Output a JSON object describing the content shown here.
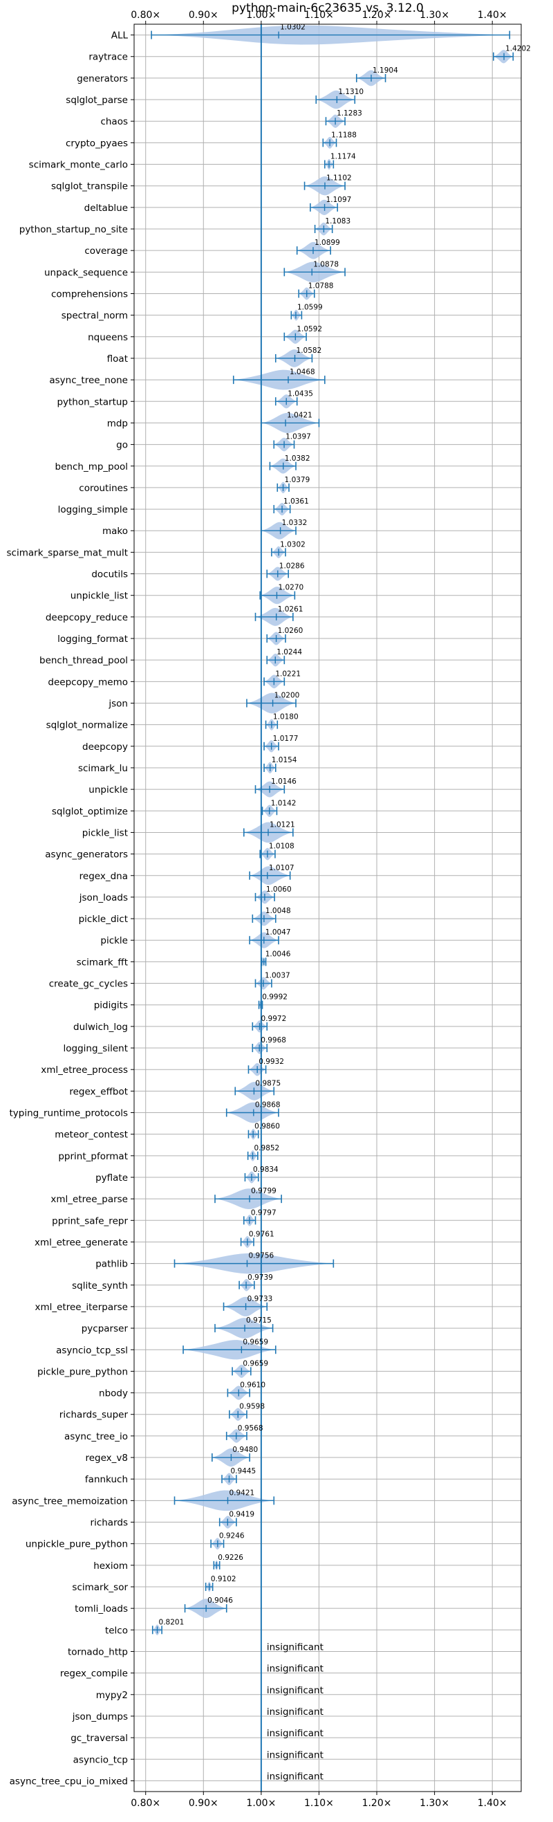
{
  "chart_data": {
    "type": "violin",
    "title": "python-main-6c23635 vs. 3.12.0",
    "xlim": [
      0.78,
      1.45
    ],
    "x_ticks": [
      0.8,
      0.9,
      1.0,
      1.1,
      1.2,
      1.3,
      1.4
    ],
    "x_tick_labels": [
      "0.80×",
      "0.90×",
      "1.00×",
      "1.10×",
      "1.20×",
      "1.30×",
      "1.40×"
    ],
    "reference_line": 1.0,
    "grid": true,
    "colors": {
      "violin": "#aec7e8",
      "line": "#1f77b4"
    },
    "benchmarks": [
      {
        "name": "ALL",
        "label": "1.0302",
        "value": 1.0302,
        "min": 0.81,
        "max": 1.43
      },
      {
        "name": "raytrace",
        "label": "1.4202",
        "value": 1.4202,
        "min": 1.402,
        "max": 1.436
      },
      {
        "name": "generators",
        "label": "1.1904",
        "value": 1.1904,
        "min": 1.165,
        "max": 1.215
      },
      {
        "name": "sqlglot_parse",
        "label": "1.1310",
        "value": 1.131,
        "min": 1.095,
        "max": 1.162
      },
      {
        "name": "chaos",
        "label": "1.1283",
        "value": 1.1283,
        "min": 1.112,
        "max": 1.145
      },
      {
        "name": "crypto_pyaes",
        "label": "1.1188",
        "value": 1.1188,
        "min": 1.107,
        "max": 1.13
      },
      {
        "name": "scimark_monte_carlo",
        "label": "1.1174",
        "value": 1.1174,
        "min": 1.11,
        "max": 1.125
      },
      {
        "name": "sqlglot_transpile",
        "label": "1.1102",
        "value": 1.1102,
        "min": 1.075,
        "max": 1.145
      },
      {
        "name": "deltablue",
        "label": "1.1097",
        "value": 1.1097,
        "min": 1.085,
        "max": 1.132
      },
      {
        "name": "python_startup_no_site",
        "label": "1.1083",
        "value": 1.1083,
        "min": 1.093,
        "max": 1.123
      },
      {
        "name": "coverage",
        "label": "1.0899",
        "value": 1.0899,
        "min": 1.062,
        "max": 1.12
      },
      {
        "name": "unpack_sequence",
        "label": "1.0878",
        "value": 1.0878,
        "min": 1.04,
        "max": 1.145
      },
      {
        "name": "comprehensions",
        "label": "1.0788",
        "value": 1.0788,
        "min": 1.065,
        "max": 1.092
      },
      {
        "name": "spectral_norm",
        "label": "1.0599",
        "value": 1.0599,
        "min": 1.052,
        "max": 1.07
      },
      {
        "name": "nqueens",
        "label": "1.0592",
        "value": 1.0592,
        "min": 1.04,
        "max": 1.078
      },
      {
        "name": "float",
        "label": "1.0582",
        "value": 1.0582,
        "min": 1.025,
        "max": 1.088
      },
      {
        "name": "async_tree_none",
        "label": "1.0468",
        "value": 1.0468,
        "min": 0.952,
        "max": 1.11
      },
      {
        "name": "python_startup",
        "label": "1.0435",
        "value": 1.0435,
        "min": 1.025,
        "max": 1.062
      },
      {
        "name": "mdp",
        "label": "1.0421",
        "value": 1.0421,
        "min": 1.0,
        "max": 1.1
      },
      {
        "name": "go",
        "label": "1.0397",
        "value": 1.0397,
        "min": 1.022,
        "max": 1.057
      },
      {
        "name": "bench_mp_pool",
        "label": "1.0382",
        "value": 1.0382,
        "min": 1.015,
        "max": 1.06
      },
      {
        "name": "coroutines",
        "label": "1.0379",
        "value": 1.0379,
        "min": 1.028,
        "max": 1.048
      },
      {
        "name": "logging_simple",
        "label": "1.0361",
        "value": 1.0361,
        "min": 1.022,
        "max": 1.05
      },
      {
        "name": "mako",
        "label": "1.0332",
        "value": 1.0332,
        "min": 1.0,
        "max": 1.06
      },
      {
        "name": "scimark_sparse_mat_mult",
        "label": "1.0302",
        "value": 1.0302,
        "min": 1.018,
        "max": 1.042
      },
      {
        "name": "docutils",
        "label": "1.0286",
        "value": 1.0286,
        "min": 1.01,
        "max": 1.047
      },
      {
        "name": "unpickle_list",
        "label": "1.0270",
        "value": 1.027,
        "min": 0.998,
        "max": 1.058
      },
      {
        "name": "deepcopy_reduce",
        "label": "1.0261",
        "value": 1.0261,
        "min": 0.99,
        "max": 1.055
      },
      {
        "name": "logging_format",
        "label": "1.0260",
        "value": 1.026,
        "min": 1.01,
        "max": 1.042
      },
      {
        "name": "bench_thread_pool",
        "label": "1.0244",
        "value": 1.0244,
        "min": 1.01,
        "max": 1.04
      },
      {
        "name": "deepcopy_memo",
        "label": "1.0221",
        "value": 1.0221,
        "min": 1.005,
        "max": 1.04
      },
      {
        "name": "json",
        "label": "1.0200",
        "value": 1.02,
        "min": 0.975,
        "max": 1.06
      },
      {
        "name": "sqlglot_normalize",
        "label": "1.0180",
        "value": 1.018,
        "min": 1.008,
        "max": 1.028
      },
      {
        "name": "deepcopy",
        "label": "1.0177",
        "value": 1.0177,
        "min": 1.005,
        "max": 1.03
      },
      {
        "name": "scimark_lu",
        "label": "1.0154",
        "value": 1.0154,
        "min": 1.005,
        "max": 1.025
      },
      {
        "name": "unpickle",
        "label": "1.0146",
        "value": 1.0146,
        "min": 0.99,
        "max": 1.04
      },
      {
        "name": "sqlglot_optimize",
        "label": "1.0142",
        "value": 1.0142,
        "min": 1.002,
        "max": 1.027
      },
      {
        "name": "pickle_list",
        "label": "1.0121",
        "value": 1.0121,
        "min": 0.97,
        "max": 1.055
      },
      {
        "name": "async_generators",
        "label": "1.0108",
        "value": 1.0108,
        "min": 0.998,
        "max": 1.024
      },
      {
        "name": "regex_dna",
        "label": "1.0107",
        "value": 1.0107,
        "min": 0.98,
        "max": 1.05
      },
      {
        "name": "json_loads",
        "label": "1.0060",
        "value": 1.006,
        "min": 0.99,
        "max": 1.023
      },
      {
        "name": "pickle_dict",
        "label": "1.0048",
        "value": 1.0048,
        "min": 0.985,
        "max": 1.025
      },
      {
        "name": "pickle",
        "label": "1.0047",
        "value": 1.0047,
        "min": 0.98,
        "max": 1.03
      },
      {
        "name": "scimark_fft",
        "label": "1.0046",
        "value": 1.0046,
        "min": 1.001,
        "max": 1.008
      },
      {
        "name": "create_gc_cycles",
        "label": "1.0037",
        "value": 1.0037,
        "min": 0.99,
        "max": 1.018
      },
      {
        "name": "pidigits",
        "label": "0.9992",
        "value": 0.9992,
        "min": 0.996,
        "max": 1.002
      },
      {
        "name": "dulwich_log",
        "label": "0.9972",
        "value": 0.9972,
        "min": 0.985,
        "max": 1.01
      },
      {
        "name": "logging_silent",
        "label": "0.9968",
        "value": 0.9968,
        "min": 0.985,
        "max": 1.01
      },
      {
        "name": "xml_etree_process",
        "label": "0.9932",
        "value": 0.9932,
        "min": 0.978,
        "max": 1.008
      },
      {
        "name": "regex_effbot",
        "label": "0.9875",
        "value": 0.9875,
        "min": 0.955,
        "max": 1.022
      },
      {
        "name": "typing_runtime_protocols",
        "label": "0.9868",
        "value": 0.9868,
        "min": 0.94,
        "max": 1.03
      },
      {
        "name": "meteor_contest",
        "label": "0.9860",
        "value": 0.986,
        "min": 0.978,
        "max": 0.995
      },
      {
        "name": "pprint_pformat",
        "label": "0.9852",
        "value": 0.9852,
        "min": 0.977,
        "max": 0.994
      },
      {
        "name": "pyflate",
        "label": "0.9834",
        "value": 0.9834,
        "min": 0.972,
        "max": 0.995
      },
      {
        "name": "xml_etree_parse",
        "label": "0.9799",
        "value": 0.9799,
        "min": 0.92,
        "max": 1.035
      },
      {
        "name": "pprint_safe_repr",
        "label": "0.9797",
        "value": 0.9797,
        "min": 0.97,
        "max": 0.99
      },
      {
        "name": "xml_etree_generate",
        "label": "0.9761",
        "value": 0.9761,
        "min": 0.965,
        "max": 0.987
      },
      {
        "name": "pathlib",
        "label": "0.9756",
        "value": 0.9756,
        "min": 0.85,
        "max": 1.125
      },
      {
        "name": "sqlite_synth",
        "label": "0.9739",
        "value": 0.9739,
        "min": 0.962,
        "max": 0.988
      },
      {
        "name": "xml_etree_iterparse",
        "label": "0.9733",
        "value": 0.9733,
        "min": 0.935,
        "max": 1.01
      },
      {
        "name": "pycparser",
        "label": "0.9715",
        "value": 0.9715,
        "min": 0.92,
        "max": 1.02
      },
      {
        "name": "asyncio_tcp_ssl",
        "label": "0.9659",
        "value": 0.9659,
        "min": 0.865,
        "max": 1.025
      },
      {
        "name": "pickle_pure_python",
        "label": "0.9659",
        "value": 0.9659,
        "min": 0.95,
        "max": 0.982
      },
      {
        "name": "nbody",
        "label": "0.9610",
        "value": 0.961,
        "min": 0.942,
        "max": 0.98
      },
      {
        "name": "richards_super",
        "label": "0.9598",
        "value": 0.9598,
        "min": 0.945,
        "max": 0.975
      },
      {
        "name": "async_tree_io",
        "label": "0.9568",
        "value": 0.9568,
        "min": 0.94,
        "max": 0.975
      },
      {
        "name": "regex_v8",
        "label": "0.9480",
        "value": 0.948,
        "min": 0.915,
        "max": 0.98
      },
      {
        "name": "fannkuch",
        "label": "0.9445",
        "value": 0.9445,
        "min": 0.932,
        "max": 0.957
      },
      {
        "name": "async_tree_memoization",
        "label": "0.9421",
        "value": 0.9421,
        "min": 0.85,
        "max": 1.022
      },
      {
        "name": "richards",
        "label": "0.9419",
        "value": 0.9419,
        "min": 0.928,
        "max": 0.957
      },
      {
        "name": "unpickle_pure_python",
        "label": "0.9246",
        "value": 0.9246,
        "min": 0.913,
        "max": 0.935
      },
      {
        "name": "hexiom",
        "label": "0.9226",
        "value": 0.9226,
        "min": 0.918,
        "max": 0.928
      },
      {
        "name": "scimark_sor",
        "label": "0.9102",
        "value": 0.9102,
        "min": 0.904,
        "max": 0.916
      },
      {
        "name": "tomli_loads",
        "label": "0.9046",
        "value": 0.9046,
        "min": 0.868,
        "max": 0.94
      },
      {
        "name": "telco",
        "label": "0.8201",
        "value": 0.8201,
        "min": 0.812,
        "max": 0.828
      },
      {
        "name": "tornado_http",
        "label": "insignificant",
        "value": null
      },
      {
        "name": "regex_compile",
        "label": "insignificant",
        "value": null
      },
      {
        "name": "mypy2",
        "label": "insignificant",
        "value": null
      },
      {
        "name": "json_dumps",
        "label": "insignificant",
        "value": null
      },
      {
        "name": "gc_traversal",
        "label": "insignificant",
        "value": null
      },
      {
        "name": "asyncio_tcp",
        "label": "insignificant",
        "value": null
      },
      {
        "name": "async_tree_cpu_io_mixed",
        "label": "insignificant",
        "value": null
      }
    ]
  }
}
